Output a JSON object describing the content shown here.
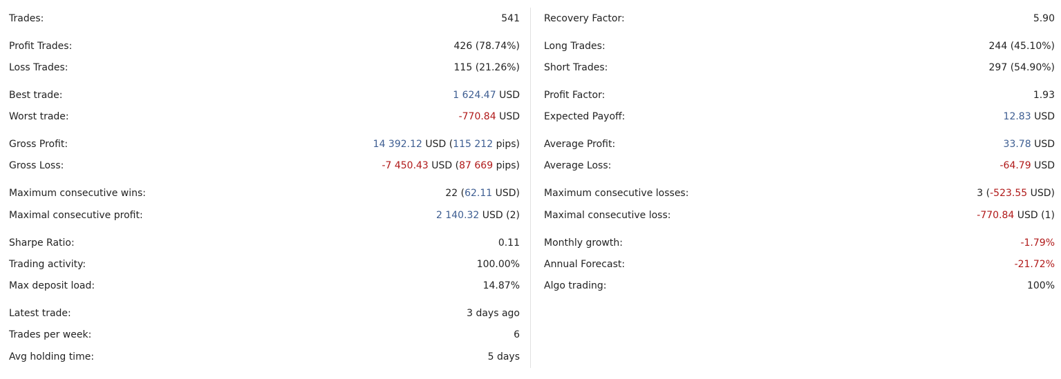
{
  "colors": {
    "positive": "#3d5d91",
    "negative": "#b01919",
    "text": "#222222",
    "divider": "#e1e1e1"
  },
  "left": {
    "trades": {
      "label": "Trades:",
      "value": "541"
    },
    "profit_trades": {
      "label": "Profit Trades:",
      "value": "426 (78.74%)"
    },
    "loss_trades": {
      "label": "Loss Trades:",
      "value": "115 (21.26%)"
    },
    "best_trade": {
      "label": "Best trade:",
      "amount": "1 624.47",
      "unit": " USD"
    },
    "worst_trade": {
      "label": "Worst trade:",
      "amount": "-770.84",
      "unit": " USD"
    },
    "gross_profit": {
      "label": "Gross Profit:",
      "amount": "14 392.12",
      "unit": " USD (",
      "pips": "115 212",
      "pips_unit": " pips)"
    },
    "gross_loss": {
      "label": "Gross Loss:",
      "amount": "-7 450.43",
      "unit": " USD (",
      "pips": "87 669",
      "pips_unit": " pips)"
    },
    "max_consec_wins": {
      "label": "Maximum consecutive wins:",
      "count": "22 (",
      "amount": "62.11",
      "unit": " USD)"
    },
    "maximal_consec_profit": {
      "label": "Maximal consecutive profit:",
      "amount": "2 140.32",
      "unit": " USD (2)"
    },
    "sharpe_ratio": {
      "label": "Sharpe Ratio:",
      "value": "0.11"
    },
    "trading_activity": {
      "label": "Trading activity:",
      "value": "100.00%"
    },
    "max_deposit_load": {
      "label": "Max deposit load:",
      "value": "14.87%"
    },
    "latest_trade": {
      "label": "Latest trade:",
      "value": "3 days ago"
    },
    "trades_per_week": {
      "label": "Trades per week:",
      "value": "6"
    },
    "avg_holding_time": {
      "label": "Avg holding time:",
      "value": "5 days"
    }
  },
  "right": {
    "recovery_factor": {
      "label": "Recovery Factor:",
      "value": "5.90"
    },
    "long_trades": {
      "label": "Long Trades:",
      "value": "244 (45.10%)"
    },
    "short_trades": {
      "label": "Short Trades:",
      "value": "297 (54.90%)"
    },
    "profit_factor": {
      "label": "Profit Factor:",
      "value": "1.93"
    },
    "expected_payoff": {
      "label": "Expected Payoff:",
      "amount": "12.83",
      "unit": " USD"
    },
    "average_profit": {
      "label": "Average Profit:",
      "amount": "33.78",
      "unit": " USD"
    },
    "average_loss": {
      "label": "Average Loss:",
      "amount": "-64.79",
      "unit": " USD"
    },
    "max_consec_losses": {
      "label": "Maximum consecutive losses:",
      "count": "3 (",
      "amount": "-523.55",
      "unit": " USD)"
    },
    "maximal_consec_loss": {
      "label": "Maximal consecutive loss:",
      "amount": "-770.84",
      "unit": " USD (1)"
    },
    "monthly_growth": {
      "label": "Monthly growth:",
      "value": "-1.79%"
    },
    "annual_forecast": {
      "label": "Annual Forecast:",
      "value": "-21.72%"
    },
    "algo_trading": {
      "label": "Algo trading:",
      "value": "100%"
    }
  }
}
